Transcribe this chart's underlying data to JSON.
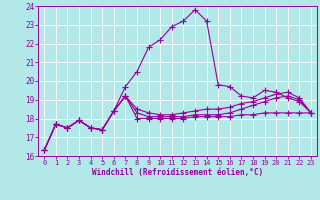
{
  "xlabel": "Windchill (Refroidissement éolien,°C)",
  "bg_color": "#b3e8e8",
  "line_color": "#990099",
  "grid_color": "#ffffff",
  "xlim": [
    -0.5,
    23.5
  ],
  "ylim": [
    16,
    24
  ],
  "xticks": [
    0,
    1,
    2,
    3,
    4,
    5,
    6,
    7,
    8,
    9,
    10,
    11,
    12,
    13,
    14,
    15,
    16,
    17,
    18,
    19,
    20,
    21,
    22,
    23
  ],
  "yticks": [
    16,
    17,
    18,
    19,
    20,
    21,
    22,
    23,
    24
  ],
  "curve1_x": [
    0,
    1,
    2,
    3,
    4,
    5,
    6,
    7,
    8,
    9,
    10,
    11,
    12,
    13,
    14,
    15,
    16,
    17,
    18,
    19,
    20,
    21,
    22,
    23
  ],
  "curve1_y": [
    16.3,
    17.7,
    17.5,
    17.9,
    17.5,
    17.4,
    18.4,
    19.2,
    18.0,
    18.0,
    18.0,
    18.0,
    18.0,
    18.1,
    18.1,
    18.1,
    18.1,
    18.2,
    18.2,
    18.3,
    18.3,
    18.3,
    18.3,
    18.3
  ],
  "curve2_x": [
    0,
    1,
    2,
    3,
    4,
    5,
    6,
    7,
    8,
    9,
    10,
    11,
    12,
    13,
    14,
    15,
    16,
    17,
    18,
    19,
    20,
    21,
    22,
    23
  ],
  "curve2_y": [
    16.3,
    17.7,
    17.5,
    17.9,
    17.5,
    17.4,
    18.4,
    19.7,
    20.5,
    21.8,
    22.2,
    22.9,
    23.2,
    23.8,
    23.2,
    19.8,
    19.7,
    19.2,
    19.1,
    19.5,
    19.4,
    19.1,
    18.9,
    18.3
  ],
  "curve3_x": [
    0,
    1,
    2,
    3,
    4,
    5,
    6,
    7,
    8,
    9,
    10,
    11,
    12,
    13,
    14,
    15,
    16,
    17,
    18,
    19,
    20,
    21,
    22,
    23
  ],
  "curve3_y": [
    16.3,
    17.7,
    17.5,
    17.9,
    17.5,
    17.4,
    18.4,
    19.2,
    18.5,
    18.3,
    18.2,
    18.2,
    18.3,
    18.4,
    18.5,
    18.5,
    18.6,
    18.8,
    18.9,
    19.1,
    19.3,
    19.4,
    19.1,
    18.3
  ],
  "curve4_x": [
    0,
    1,
    2,
    3,
    4,
    5,
    6,
    7,
    8,
    9,
    10,
    11,
    12,
    13,
    14,
    15,
    16,
    17,
    18,
    19,
    20,
    21,
    22,
    23
  ],
  "curve4_y": [
    16.3,
    17.7,
    17.5,
    17.9,
    17.5,
    17.4,
    18.4,
    19.2,
    18.3,
    18.1,
    18.1,
    18.1,
    18.1,
    18.2,
    18.2,
    18.2,
    18.3,
    18.5,
    18.7,
    18.9,
    19.1,
    19.2,
    19.0,
    18.3
  ]
}
